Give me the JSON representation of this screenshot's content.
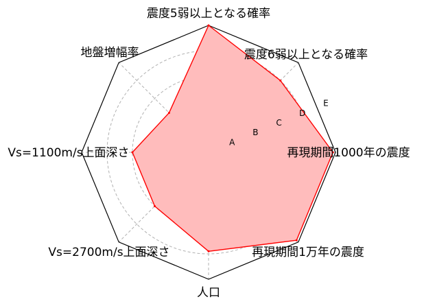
{
  "chart_data": {
    "type": "radar",
    "axes": [
      "震度5弱以上となる確率",
      "震度6弱以上となる確率",
      "再現期間1000年の震度",
      "再現期間1万年の震度",
      "人口",
      "Vs=2700m/s上面深さ",
      "Vs=1100m/s上面深さ",
      "地盤増幅率"
    ],
    "ring_labels": [
      "A",
      "B",
      "C",
      "D",
      "E"
    ],
    "scale_max": 5,
    "values": [
      5.0,
      4.0,
      4.9,
      4.9,
      3.9,
      3.0,
      3.0,
      2.2
    ],
    "grid": true,
    "colors": {
      "fill": "#ffbcbc",
      "line": "#ff0000",
      "frame": "#000000",
      "grid": "#b0b0b0"
    }
  }
}
